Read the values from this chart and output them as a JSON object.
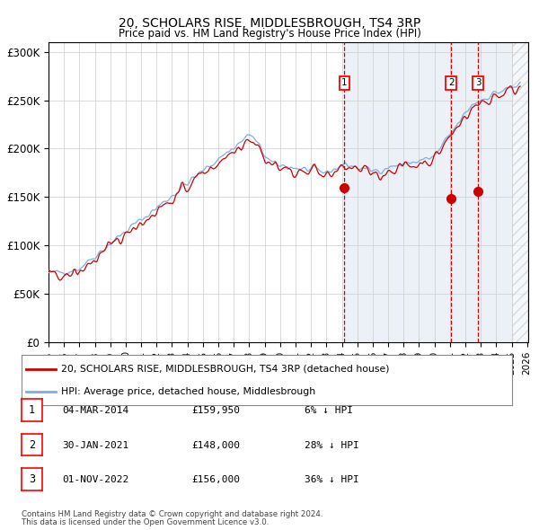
{
  "title": "20, SCHOLARS RISE, MIDDLESBROUGH, TS4 3RP",
  "subtitle": "Price paid vs. HM Land Registry's House Price Index (HPI)",
  "legend_line1": "20, SCHOLARS RISE, MIDDLESBROUGH, TS4 3RP (detached house)",
  "legend_line2": "HPI: Average price, detached house, Middlesbrough",
  "sales": [
    {
      "label": "1",
      "date": "04-MAR-2014",
      "price": 159950,
      "pct": "6%"
    },
    {
      "label": "2",
      "date": "30-JAN-2021",
      "price": 148000,
      "pct": "28%"
    },
    {
      "label": "3",
      "date": "01-NOV-2022",
      "price": 156000,
      "pct": "36%"
    }
  ],
  "footer_line1": "Contains HM Land Registry data © Crown copyright and database right 2024.",
  "footer_line2": "This data is licensed under the Open Government Licence v3.0.",
  "hpi_color": "#7aafe0",
  "price_color": "#cc0000",
  "sale_marker_color": "#cc0000",
  "vline_color": "#cc0000",
  "background_shade": "#dce6f1",
  "ylim": [
    0,
    310000
  ],
  "yticks": [
    0,
    50000,
    100000,
    150000,
    200000,
    250000,
    300000
  ]
}
